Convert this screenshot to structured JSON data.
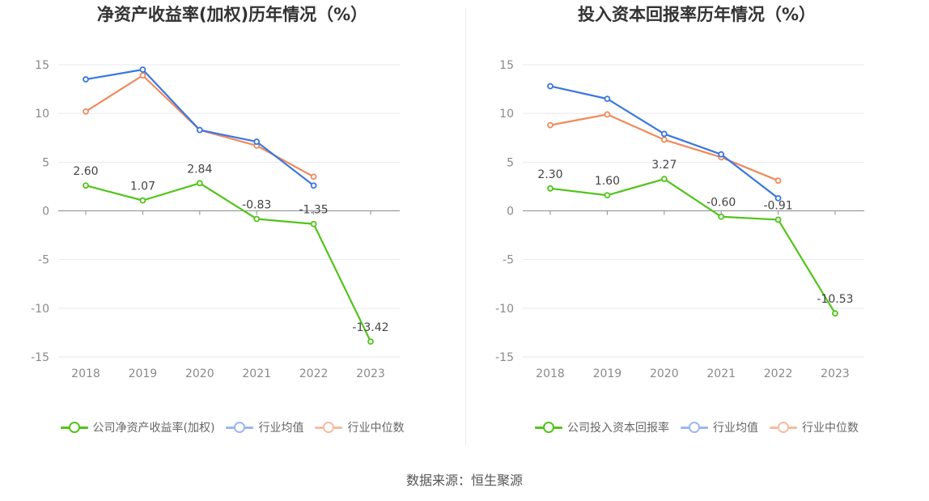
{
  "chart_data": [
    {
      "type": "line",
      "title": "净资产收益率(加权)历年情况（%）",
      "categories": [
        "2018",
        "2019",
        "2020",
        "2021",
        "2022",
        "2023"
      ],
      "ylim": [
        -15,
        15
      ],
      "yticks": [
        15,
        10,
        5,
        0,
        -5,
        -10,
        -15
      ],
      "grid": true,
      "legend_position": "bottom",
      "series": [
        {
          "name": "公司净资产收益率(加权)",
          "color": "#52c41a",
          "values": [
            2.6,
            1.07,
            2.84,
            -0.83,
            -1.35,
            -13.42
          ],
          "labels": [
            "2.60",
            "1.07",
            "2.84",
            "-0.83",
            "-1.35",
            "-13.42"
          ]
        },
        {
          "name": "行业均值",
          "color": "#3a77e0",
          "values": [
            13.5,
            14.5,
            8.3,
            7.1,
            2.6,
            null
          ]
        },
        {
          "name": "行业中位数",
          "color": "#f08a5d",
          "values": [
            10.2,
            13.9,
            8.3,
            6.7,
            3.5,
            null
          ]
        }
      ]
    },
    {
      "type": "line",
      "title": "投入资本回报率历年情况（%）",
      "categories": [
        "2018",
        "2019",
        "2020",
        "2021",
        "2022",
        "2023"
      ],
      "ylim": [
        -15,
        15
      ],
      "yticks": [
        15,
        10,
        5,
        0,
        -5,
        -10,
        -15
      ],
      "grid": true,
      "legend_position": "bottom",
      "series": [
        {
          "name": "公司投入资本回报率",
          "color": "#52c41a",
          "values": [
            2.3,
            1.6,
            3.27,
            -0.6,
            -0.91,
            -10.53
          ],
          "labels": [
            "2.30",
            "1.60",
            "3.27",
            "-0.60",
            "-0.91",
            "-10.53"
          ]
        },
        {
          "name": "行业均值",
          "color": "#3a77e0",
          "values": [
            12.8,
            11.5,
            7.9,
            5.8,
            1.3,
            null
          ]
        },
        {
          "name": "行业中位数",
          "color": "#f08a5d",
          "values": [
            8.8,
            9.9,
            7.3,
            5.5,
            3.1,
            null
          ]
        }
      ]
    }
  ],
  "source": "数据来源：恒生聚源"
}
